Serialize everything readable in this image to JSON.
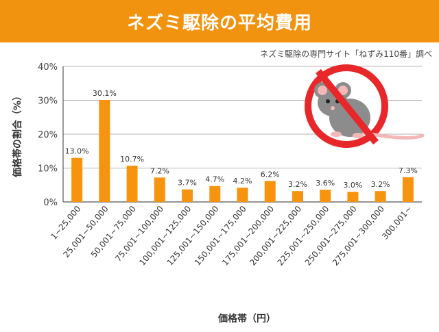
{
  "header": {
    "title": "ネズミ駆除の平均費用",
    "source": "ネズミ駆除の専門サイト「ねずみ110番」調べ"
  },
  "colors": {
    "accent": "#f2930f",
    "bar": "#f7940f",
    "prohibit": "#e8272a"
  },
  "icon": "no-rat-icon",
  "chart_data": {
    "type": "bar",
    "title": "",
    "xlabel": "価格帯（円）",
    "ylabel": "価格帯の割合（%）",
    "ylim": [
      0,
      40
    ],
    "yticks": [
      "0%",
      "10%",
      "20%",
      "30%",
      "40%"
    ],
    "grid": true,
    "categories": [
      "1~25,000",
      "25,001~50,000",
      "50,001~75,000",
      "75,001~100,000",
      "100,001~125,000",
      "125,001~150,000",
      "150,001~175,000",
      "175,001~200,000",
      "200,001~225,000",
      "225,001~250,000",
      "250,001~275,000",
      "275,001~300,000",
      "300,001~"
    ],
    "values": [
      13.0,
      30.1,
      10.7,
      7.2,
      3.7,
      4.7,
      4.2,
      6.2,
      3.2,
      3.6,
      3.0,
      3.2,
      7.3
    ],
    "labels": [
      "13.0%",
      "30.1%",
      "10.7%",
      "7.2%",
      "3.7%",
      "4.7%",
      "4.2%",
      "6.2%",
      "3.2%",
      "3.6%",
      "3.0%",
      "3.2%",
      "7.3%"
    ]
  }
}
